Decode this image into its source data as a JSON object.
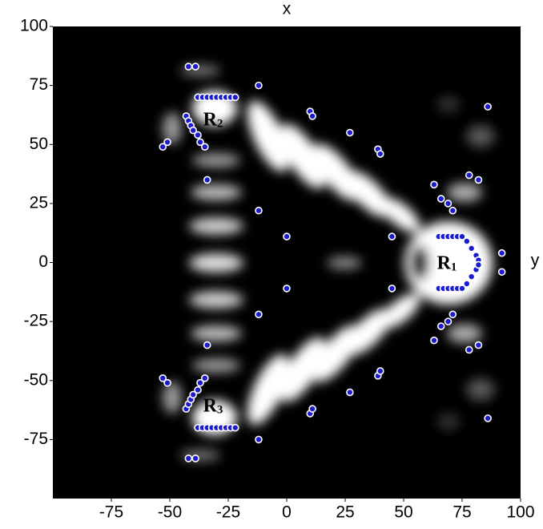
{
  "chart_data": {
    "type": "scatter",
    "x_label": "x",
    "y_label": "y",
    "xlim": [
      -100,
      100
    ],
    "ylim": [
      -100,
      100
    ],
    "xticks": [
      -75,
      -50,
      -25,
      0,
      25,
      50,
      75,
      100
    ],
    "yticks": [
      -75,
      -50,
      -25,
      0,
      25,
      50,
      75,
      100
    ],
    "series": [
      {
        "color": "#1c1ccf",
        "x": [
          -42,
          -39,
          -38,
          -36,
          -34,
          -32,
          -30,
          -28,
          -26,
          -24,
          -22,
          -43,
          -42,
          -41,
          -40,
          -38,
          -37,
          -35,
          -53,
          -51,
          -34,
          -12,
          10,
          11,
          27,
          39,
          40,
          86,
          63,
          66,
          69,
          71,
          78,
          82,
          -12,
          0,
          45,
          65,
          67,
          69,
          71,
          73,
          75,
          77,
          79,
          81,
          82,
          92,
          -42,
          -39,
          -38,
          -36,
          -34,
          -32,
          -30,
          -28,
          -26,
          -24,
          -22,
          -43,
          -42,
          -41,
          -40,
          -38,
          -37,
          -35,
          -53,
          -51,
          -34,
          -12,
          10,
          11,
          27,
          39,
          40,
          86,
          63,
          66,
          69,
          71,
          78,
          82,
          -12,
          0,
          45,
          65,
          67,
          69,
          71,
          73,
          75,
          77,
          79,
          81,
          82,
          92
        ],
        "y": [
          83,
          83,
          70,
          70,
          70,
          70,
          70,
          70,
          70,
          70,
          70,
          62,
          60,
          58,
          56,
          54,
          51,
          49,
          49,
          51,
          35,
          75,
          64,
          62,
          55,
          48,
          46,
          66,
          33,
          27,
          25,
          22,
          37,
          35,
          22,
          11,
          11,
          11,
          11,
          11,
          11,
          11,
          11,
          9,
          6,
          3,
          1,
          4,
          -83,
          -83,
          -70,
          -70,
          -70,
          -70,
          -70,
          -70,
          -70,
          -70,
          -70,
          -62,
          -60,
          -58,
          -56,
          -54,
          -51,
          -49,
          -49,
          -51,
          -35,
          -75,
          -64,
          -62,
          -55,
          -48,
          -46,
          -66,
          -33,
          -27,
          -25,
          -22,
          -37,
          -35,
          -22,
          -11,
          -11,
          -11,
          -11,
          -11,
          -11,
          -11,
          -11,
          -9,
          -6,
          -3,
          -1,
          -4
        ]
      }
    ],
    "annotations": [
      {
        "text": "R",
        "subscript": "1"
      },
      {
        "text": "R",
        "subscript": "2"
      },
      {
        "text": "R",
        "subscript": "3"
      }
    ]
  }
}
